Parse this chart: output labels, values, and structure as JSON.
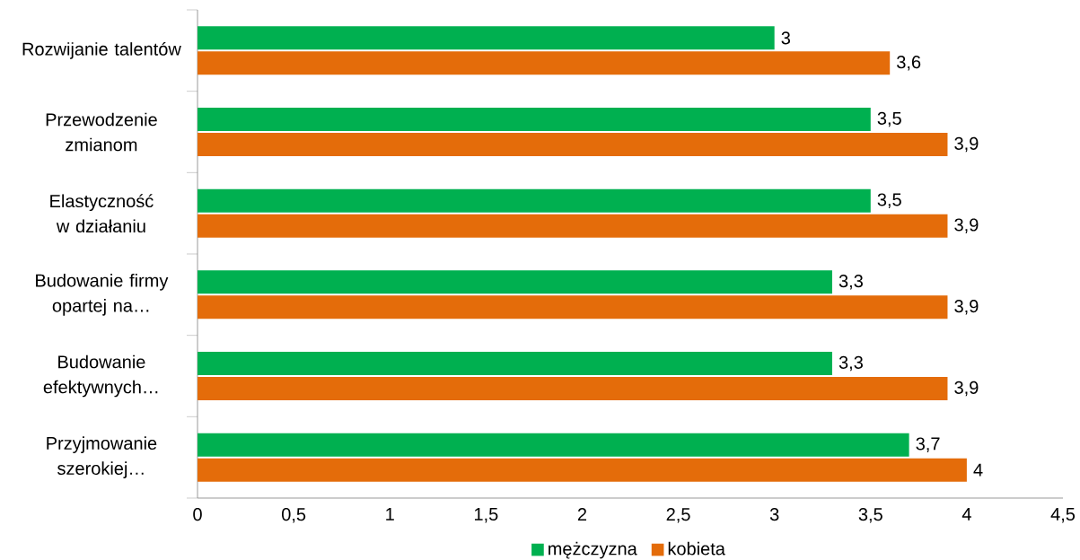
{
  "chart_data": {
    "type": "bar",
    "orientation": "horizontal",
    "categories": [
      "Rozwijanie talentów",
      "Przewodzenie zmianom",
      "Elastyczność w działaniu",
      "Budowanie firmy opartej na…",
      "Budowanie efektywnych…",
      "Przyjmowanie szerokiej…"
    ],
    "series": [
      {
        "name": "mężczyzna",
        "color": "#00b050",
        "values": [
          3,
          3.5,
          3.5,
          3.3,
          3.3,
          3.7
        ],
        "value_labels": [
          "3",
          "3,5",
          "3,5",
          "3,3",
          "3,3",
          "3,7"
        ]
      },
      {
        "name": "kobieta",
        "color": "#e46c0a",
        "values": [
          3.6,
          3.9,
          3.9,
          3.9,
          3.9,
          4
        ],
        "value_labels": [
          "3,6",
          "3,9",
          "3,9",
          "3,9",
          "3,9",
          "4"
        ]
      }
    ],
    "xlim": [
      0,
      4.5
    ],
    "xticks": [
      0,
      {
        "value": 0.5,
        "label": "0,5"
      },
      1,
      {
        "value": 1.5,
        "label": "1,5"
      },
      2,
      {
        "value": 2.5,
        "label": "2,5"
      },
      3,
      {
        "value": 3.5,
        "label": "3,5"
      },
      4,
      {
        "value": 4.5,
        "label": "4,5"
      }
    ],
    "legend": "bottom"
  }
}
